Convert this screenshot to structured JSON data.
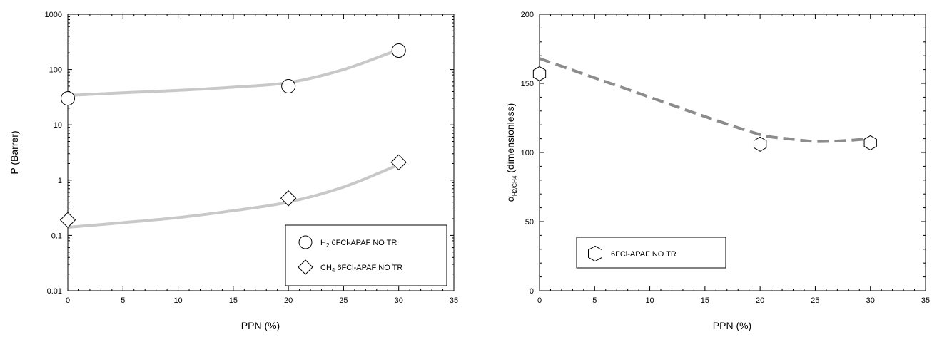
{
  "colors": {
    "fit_line": "#c8c8c8",
    "dashed_line": "#8c8c8c",
    "axis": "#000000",
    "marker_fill": "#ffffff"
  },
  "chart_data": [
    {
      "type": "scatter",
      "xlabel": "PPN (%)",
      "ylabel": "P (Barrer)",
      "xlim": [
        0,
        35
      ],
      "ylim": [
        0.01,
        1000
      ],
      "y_scale": "log",
      "x_ticks": [
        "0",
        "5",
        "10",
        "15",
        "20",
        "25",
        "30",
        "35"
      ],
      "y_ticks": [
        "0.01",
        "0.1",
        "1",
        "10",
        "100",
        "1000"
      ],
      "legend_placement": "bottom-right",
      "series": [
        {
          "name": "H2 6FCl-APAF NO TR",
          "legend_main": "H",
          "legend_sub": "2",
          "legend_rest": " 6FCl-APAF NO TR",
          "marker": "circle",
          "x": [
            0,
            20,
            30
          ],
          "y": [
            30,
            50,
            220
          ],
          "fit": {
            "style": "solid",
            "x": [
              0,
              5,
              10,
              15,
              20,
              25,
              30
            ],
            "y": [
              34,
              38,
              42,
              48,
              58,
              100,
              230
            ]
          }
        },
        {
          "name": "CH4 6FCl-APAF NO TR",
          "legend_main": "CH",
          "legend_sub": "4",
          "legend_rest": " 6FCl-APAF NO TR",
          "marker": "diamond",
          "x": [
            0,
            20,
            30
          ],
          "y": [
            0.19,
            0.47,
            2.1
          ],
          "fit": {
            "style": "solid",
            "x": [
              0,
              5,
              10,
              15,
              20,
              25,
              30
            ],
            "y": [
              0.14,
              0.17,
              0.21,
              0.28,
              0.4,
              0.75,
              1.9
            ]
          }
        }
      ]
    },
    {
      "type": "scatter",
      "xlabel": "PPN (%)",
      "ylabel_alpha": "α",
      "ylabel_sub": "H2/CH4",
      "ylabel_rest": " (dimensionless)",
      "xlim": [
        0,
        35
      ],
      "ylim": [
        0,
        200
      ],
      "x_ticks": [
        "0",
        "5",
        "10",
        "15",
        "20",
        "25",
        "30",
        "35"
      ],
      "y_ticks": [
        "0",
        "50",
        "100",
        "150",
        "200"
      ],
      "legend_placement": "bottom-left",
      "series": [
        {
          "name": "6FCl-APAF NO TR",
          "marker": "hexagon",
          "x": [
            0,
            20,
            30
          ],
          "y": [
            157,
            106,
            107
          ],
          "fit": {
            "style": "dashed",
            "x": [
              0,
              5,
              10,
              15,
              20,
              22.5,
              25,
              27.5,
              30
            ],
            "y": [
              168,
              154,
              140,
              126,
              113,
              110,
              108,
              108.5,
              110
            ]
          }
        }
      ]
    }
  ]
}
